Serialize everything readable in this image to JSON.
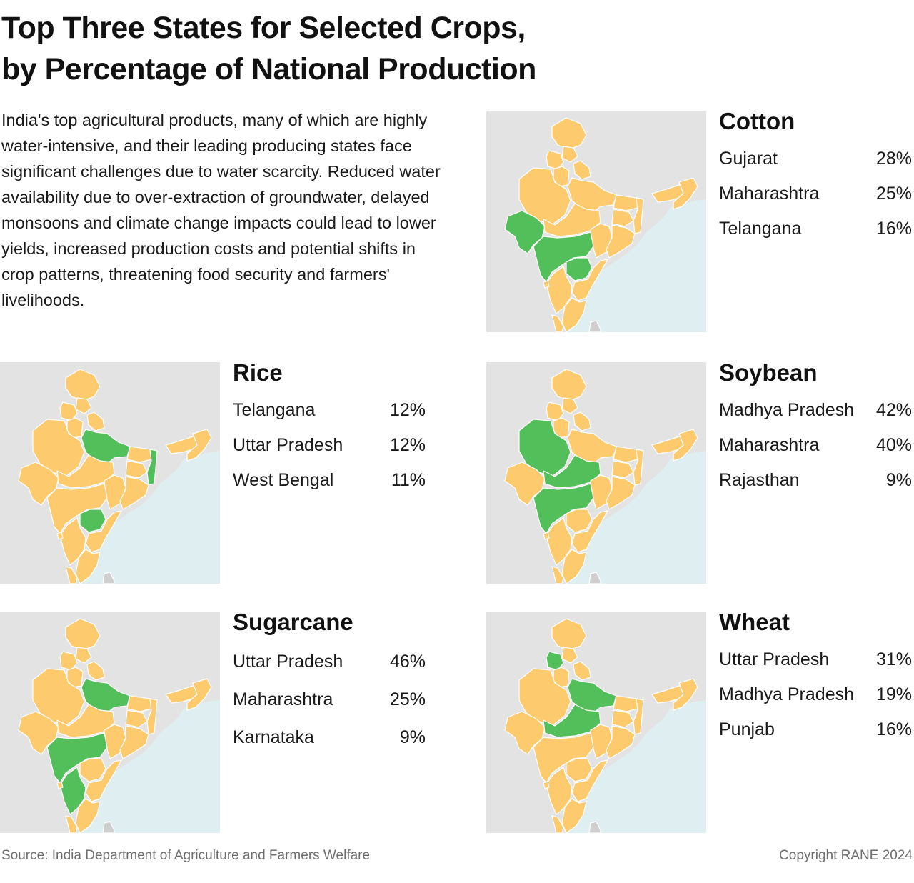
{
  "title_line1": "Top Three States for Selected Crops,",
  "title_line2": "by Percentage of National Production",
  "intro": "India's top agricultural products, many of which are highly water-intensive, and their leading producing states face significant challenges due to water scarcity. Reduced water availability due to over-extraction of groundwater, delayed monsoons and climate change impacts could lead to lower yields, increased production costs and potential shifts in crop patterns, threatening food security and farmers' livelihoods.",
  "colors": {
    "highlight": "#52bf5a",
    "other_state": "#fdca6e",
    "land": "#e3e3e3",
    "sea": "#dfeef0",
    "border": "#ffffff"
  },
  "crops": [
    {
      "name": "Cotton",
      "highlighted": [
        "gujarat",
        "maharashtra",
        "telangana"
      ],
      "states": [
        {
          "state": "Gujarat",
          "pct": "28%"
        },
        {
          "state": "Maharashtra",
          "pct": "25%"
        },
        {
          "state": "Telangana",
          "pct": "16%"
        }
      ]
    },
    {
      "name": "Rice",
      "highlighted": [
        "telangana",
        "uttar-pradesh",
        "west-bengal"
      ],
      "states": [
        {
          "state": "Telangana",
          "pct": "12%"
        },
        {
          "state": "Uttar Pradesh",
          "pct": "12%"
        },
        {
          "state": "West Bengal",
          "pct": "11%"
        }
      ]
    },
    {
      "name": "Soybean",
      "highlighted": [
        "madhya-pradesh",
        "maharashtra",
        "rajasthan"
      ],
      "states": [
        {
          "state": "Madhya Pradesh",
          "pct": "42%"
        },
        {
          "state": "Maharashtra",
          "pct": "40%"
        },
        {
          "state": "Rajasthan",
          "pct": "9%"
        }
      ]
    },
    {
      "name": "Sugarcane",
      "highlighted": [
        "uttar-pradesh",
        "maharashtra",
        "karnataka"
      ],
      "states": [
        {
          "state": "Uttar Pradesh",
          "pct": "46%"
        },
        {
          "state": "Maharashtra",
          "pct": "25%"
        },
        {
          "state": "Karnataka",
          "pct": "9%"
        }
      ]
    },
    {
      "name": "Wheat",
      "highlighted": [
        "uttar-pradesh",
        "madhya-pradesh",
        "punjab"
      ],
      "states": [
        {
          "state": "Uttar Pradesh",
          "pct": "31%"
        },
        {
          "state": "Madhya Pradesh",
          "pct": "19%"
        },
        {
          "state": "Punjab",
          "pct": "16%"
        }
      ]
    }
  ],
  "source": "Source: India Department of Agriculture and Farmers Welfare",
  "copyright": "Copyright RANE 2024"
}
